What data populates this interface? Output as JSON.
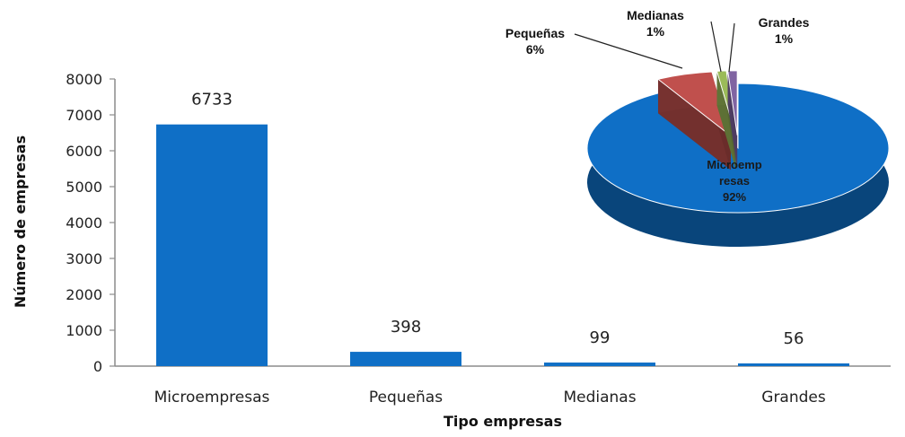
{
  "chart_data": [
    {
      "type": "bar",
      "categories": [
        "Microempresas",
        "Pequeñas",
        "Medianas",
        "Grandes"
      ],
      "values": [
        6733,
        398,
        99,
        56
      ],
      "data_labels": [
        "6733",
        "398",
        "99",
        "56"
      ],
      "xlabel": "Tipo empresas",
      "ylabel": "Número de empresas",
      "ylim": [
        0,
        8000
      ],
      "yticks": [
        "0",
        "1000",
        "2000",
        "3000",
        "4000",
        "5000",
        "6000",
        "7000",
        "8000"
      ],
      "grid": false,
      "colors": {
        "bar": "#0f6fc6"
      }
    },
    {
      "type": "pie",
      "slices": [
        {
          "label": "Pequeñas",
          "pct_label": "6%",
          "value": 6,
          "color": "#c0504d"
        },
        {
          "label": "Medianas",
          "pct_label": "1%",
          "value": 1,
          "color": "#9bbb59"
        },
        {
          "label": "Grandes",
          "pct_label": "1%",
          "value": 1,
          "color": "#8064a2"
        },
        {
          "label": "Microemp resas",
          "pct_label": "92%",
          "value": 92,
          "color": "#0f6fc6"
        }
      ],
      "style": "3d-exploded"
    }
  ]
}
